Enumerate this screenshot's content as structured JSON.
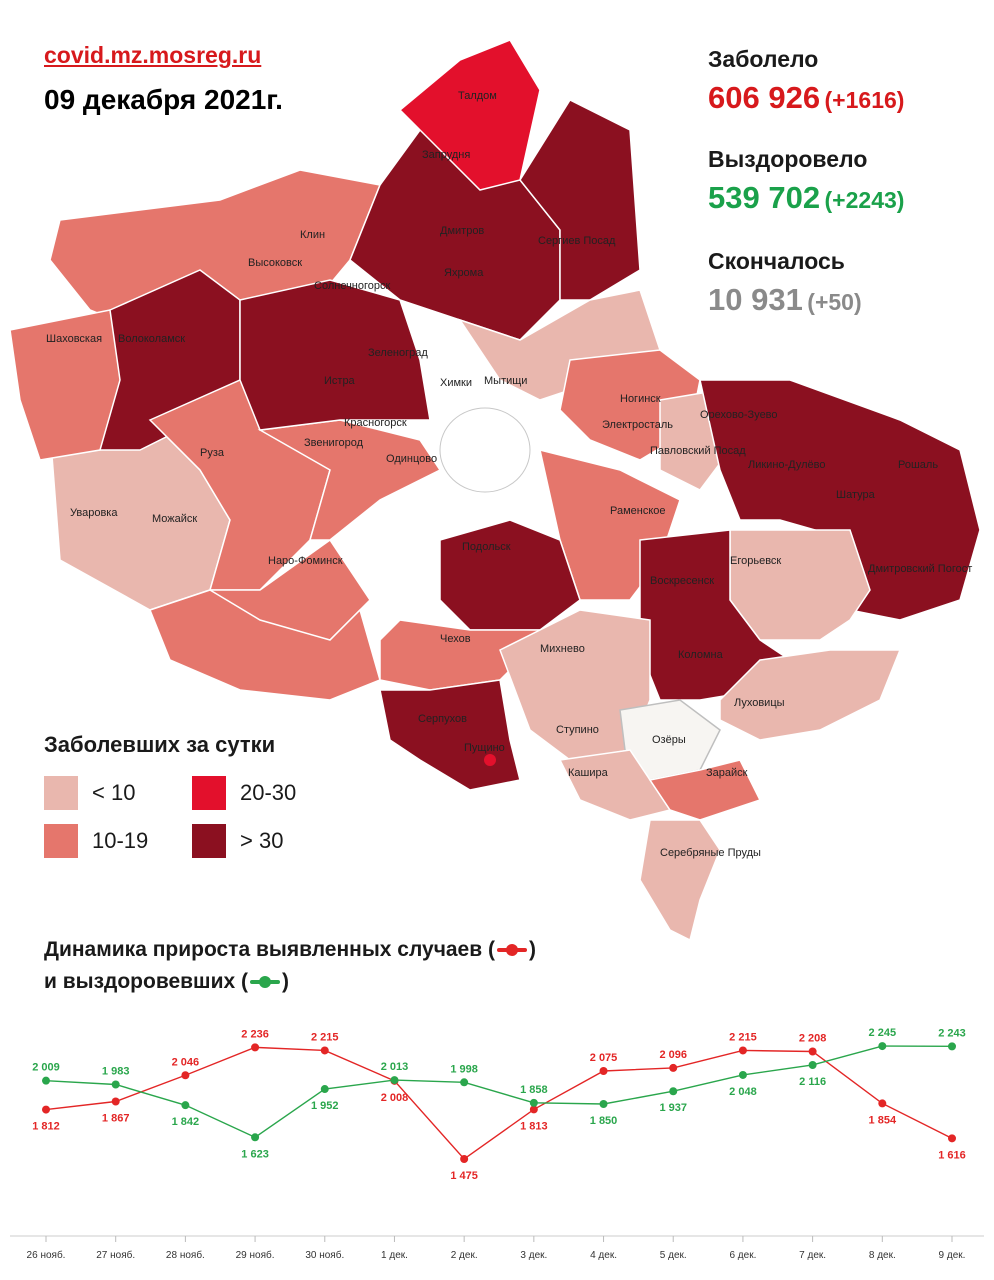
{
  "header": {
    "site": "covid.mz.mosreg.ru",
    "date": "09 декабря 2021г."
  },
  "stats": {
    "cases": {
      "label": "Заболело",
      "value": "606 926",
      "delta": "(+1616)",
      "color": "#d7191c"
    },
    "recovered": {
      "label": "Выздоровело",
      "value": "539 702",
      "delta": "(+2243)",
      "color": "#1aa14a"
    },
    "deaths": {
      "label": "Скончалось",
      "value": "10 931",
      "delta": "(+50)",
      "color": "#8a8a8a"
    }
  },
  "map": {
    "legend": {
      "title": "Заболевших за сутки",
      "items": [
        {
          "label": "< 10",
          "color": "#e9b7ae"
        },
        {
          "label": "20-30",
          "color": "#e3102c"
        },
        {
          "label": "10-19",
          "color": "#e5766c"
        },
        {
          "label": "> 30",
          "color": "#8b1020"
        }
      ]
    },
    "places": [
      "Талдом",
      "Запрудня",
      "Дмитров",
      "Сергиев Посад",
      "Яхрома",
      "Клин",
      "Высоковск",
      "Солнечногорск",
      "Шаховская",
      "Волоколамск",
      "Зеленоград",
      "Истра",
      "Химки",
      "Мытищи",
      "Красногорск",
      "Ногинск",
      "Электросталь",
      "Орехово-Зуево",
      "Ликино-Дулёво",
      "Рошаль",
      "Павловский Посад",
      "Руза",
      "Звенигород",
      "Одинцово",
      "Уваровка",
      "Можайск",
      "Шатура",
      "Раменское",
      "Наро-Фоминск",
      "Подольск",
      "Егорьевск",
      "Воскресенск",
      "Дмитровский Погост",
      "Чехов",
      "Михнево",
      "Коломна",
      "Луховицы",
      "Серпухов",
      "Ступино",
      "Озёры",
      "Пущино",
      "Кашира",
      "Зарайск",
      "Серебряные Пруды"
    ]
  },
  "dynamics": {
    "title_line1": "Динамика прироста выявленных случаев (",
    "title_line1_end": ")",
    "title_line2": "и выздоровевших (",
    "title_line2_end": ")"
  },
  "chart_data": {
    "type": "line",
    "categories": [
      "26 нояб.",
      "27 нояб.",
      "28 нояб.",
      "29 нояб.",
      "30 нояб.",
      "1 дек.",
      "2 дек.",
      "3 дек.",
      "4 дек.",
      "5 дек.",
      "6 дек.",
      "7 дек.",
      "8 дек.",
      "9 дек."
    ],
    "series": [
      {
        "key": "cases",
        "color": "#e32626",
        "values": [
          1812,
          1867,
          2046,
          2236,
          2215,
          2008,
          1475,
          1813,
          2075,
          2096,
          2215,
          2208,
          1854,
          1616
        ],
        "labels": [
          "1 812",
          "1 867",
          "2 046",
          "2 236",
          "2 215",
          "2 008",
          "1 475",
          "1 813",
          "2 075",
          "2 096",
          "2 215",
          "2 208",
          "1 854",
          "1 616"
        ],
        "label_pos": [
          "below",
          "below",
          "above",
          "above",
          "above",
          "below",
          "below",
          "below",
          "above",
          "above",
          "above",
          "above",
          "below",
          "below"
        ]
      },
      {
        "key": "recovered",
        "color": "#2aa64c",
        "values": [
          2009,
          1983,
          1842,
          1623,
          1952,
          2013,
          1998,
          1858,
          1850,
          1937,
          2048,
          2116,
          2245,
          2243
        ],
        "labels": [
          "2 009",
          "1 983",
          "1 842",
          "1 623",
          "1 952",
          "2 013",
          "1 998",
          "1 858",
          "1 850",
          "1 937",
          "2 048",
          "2 116",
          "2 245",
          "2 243"
        ],
        "label_pos": [
          "above",
          "above",
          "below",
          "below",
          "below",
          "above",
          "above",
          "above",
          "below",
          "below",
          "below",
          "below",
          "above",
          "above"
        ]
      }
    ],
    "ylim": [
      1400,
      2300
    ]
  }
}
